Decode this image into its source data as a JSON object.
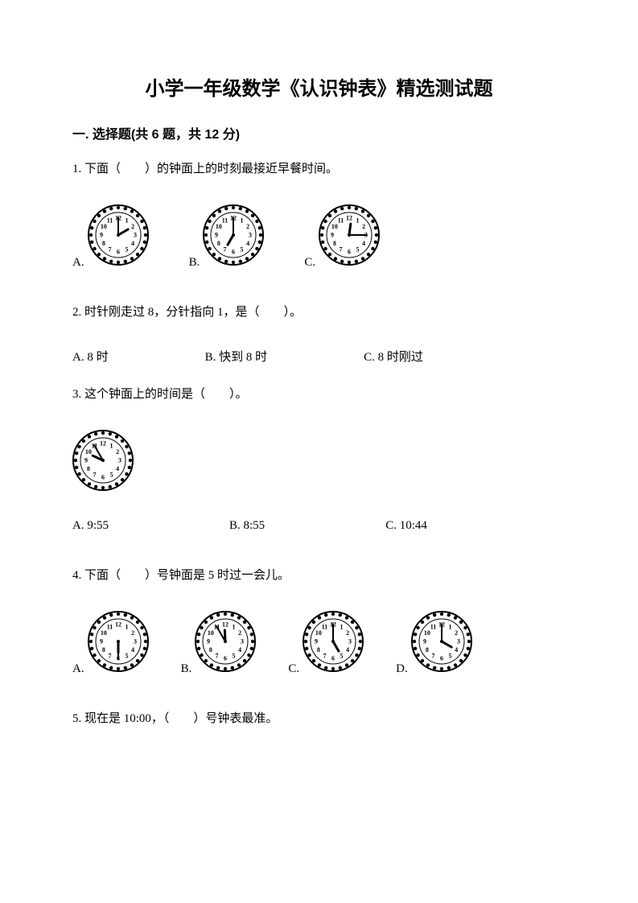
{
  "title": "小学一年级数学《认识钟表》精选测试题",
  "section1": {
    "header": "一. 选择题(共 6 题，共 12 分)"
  },
  "q1": {
    "text": "1. 下面（　　）的钟面上的时刻最接近早餐时间。",
    "optA": "A.",
    "optB": "B.",
    "optC": "C.",
    "clockA": {
      "hour": 2,
      "minute": 0
    },
    "clockB": {
      "hour": 7,
      "minute": 0
    },
    "clockC": {
      "hour": 12,
      "minute": 15
    }
  },
  "q2": {
    "text": "2. 时针刚走过 8，分针指向 1，是（　　）。",
    "optA": "A. 8 时",
    "optB": "B. 快到 8 时",
    "optC": "C. 8 时刚过"
  },
  "q3": {
    "text": "3. 这个钟面上的时间是（　　）。",
    "clock": {
      "hour": 8.9,
      "minute": 55
    },
    "optA": "A. 9:55",
    "optB": "B. 8:55",
    "optC": "C. 10:44"
  },
  "q4": {
    "text": "4. 下面（　　）号钟面是 5 时过一会儿。",
    "optA": "A.",
    "optB": "B.",
    "optC": "C.",
    "optD": "D.",
    "clockA": {
      "hour": 5.5,
      "minute": 30
    },
    "clockB": {
      "hour": 11,
      "minute": 55
    },
    "clockC": {
      "hour": 5,
      "minute": 0
    },
    "clockD": {
      "hour": 4,
      "minute": 0
    }
  },
  "q5": {
    "text": "5. 现在是 10:00，（　　）号钟表最准。"
  },
  "clockStyle": {
    "size": 76,
    "outerStroke": "#000000",
    "innerFill": "#ffffff",
    "numberFontSize": 8
  }
}
